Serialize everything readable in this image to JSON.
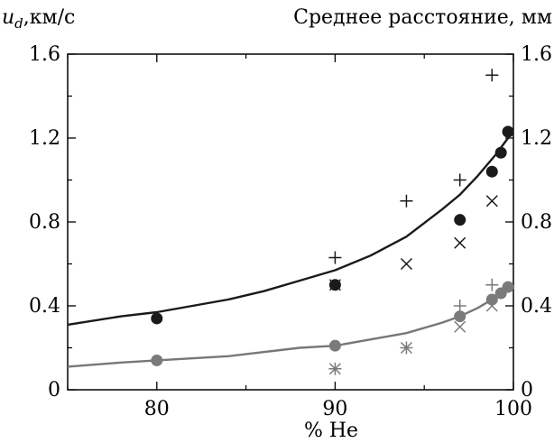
{
  "chart_data": {
    "type": "scatter",
    "title": "",
    "ylabel_left": "u_d,км/с",
    "ylabel_left_parts": {
      "var": "u",
      "sub": "d",
      "unit": ",км/с"
    },
    "ylabel_right": "Среднее расстояние, мм",
    "xlabel": "% He",
    "xlim": [
      75,
      100
    ],
    "ylim": [
      0,
      1.6
    ],
    "ylim_right": [
      0,
      1.6
    ],
    "x_ticks": [
      "80",
      "90",
      "100"
    ],
    "x_tick_values": [
      80,
      90,
      100
    ],
    "y_ticks": [
      "0",
      "0.4",
      "0.8",
      "1.2",
      "1.6"
    ],
    "y_tick_values": [
      0,
      0.4,
      0.8,
      1.2,
      1.6
    ],
    "y_ticks_right": [
      "0",
      "0.4",
      "0.8",
      "1.2",
      "1.6"
    ],
    "grid": false,
    "legend": "none",
    "series": [
      {
        "marker": "circle",
        "color": "#1a1a1a",
        "points": [
          [
            80.0,
            0.34
          ],
          [
            90.0,
            0.5
          ],
          [
            97.0,
            0.81
          ],
          [
            98.8,
            1.04
          ],
          [
            99.3,
            1.13
          ],
          [
            99.7,
            1.23
          ]
        ]
      },
      {
        "marker": "plus",
        "color": "#1a1a1a",
        "points": [
          [
            90.0,
            0.63
          ],
          [
            94.0,
            0.9
          ],
          [
            97.0,
            1.0
          ],
          [
            98.8,
            1.5
          ]
        ]
      },
      {
        "marker": "cross",
        "color": "#1a1a1a",
        "points": [
          [
            90.0,
            0.5
          ],
          [
            94.0,
            0.6
          ],
          [
            97.0,
            0.7
          ],
          [
            98.8,
            0.9
          ]
        ]
      },
      {
        "marker": "circle",
        "color": "#7a7a7a",
        "points": [
          [
            80.0,
            0.14
          ],
          [
            90.0,
            0.21
          ],
          [
            97.0,
            0.35
          ],
          [
            98.8,
            0.43
          ],
          [
            99.3,
            0.46
          ],
          [
            99.7,
            0.49
          ]
        ]
      },
      {
        "marker": "plus",
        "color": "#7a7a7a",
        "points": [
          [
            90.0,
            0.1
          ],
          [
            94.0,
            0.2
          ],
          [
            97.0,
            0.4
          ],
          [
            98.8,
            0.5
          ]
        ]
      },
      {
        "marker": "cross",
        "color": "#7a7a7a",
        "points": [
          [
            90.0,
            0.1
          ],
          [
            94.0,
            0.2
          ],
          [
            97.0,
            0.3
          ],
          [
            98.8,
            0.4
          ]
        ]
      }
    ],
    "lines": [
      {
        "color": "#1a1a1a",
        "points": [
          [
            75,
            0.31
          ],
          [
            78,
            0.35
          ],
          [
            80,
            0.37
          ],
          [
            82,
            0.4
          ],
          [
            84,
            0.43
          ],
          [
            86,
            0.47
          ],
          [
            88,
            0.52
          ],
          [
            90,
            0.57
          ],
          [
            92,
            0.64
          ],
          [
            94,
            0.73
          ],
          [
            96,
            0.86
          ],
          [
            97,
            0.93
          ],
          [
            98,
            1.02
          ],
          [
            99,
            1.12
          ],
          [
            99.7,
            1.2
          ]
        ]
      },
      {
        "color": "#777777",
        "points": [
          [
            75,
            0.11
          ],
          [
            78,
            0.13
          ],
          [
            80,
            0.14
          ],
          [
            84,
            0.16
          ],
          [
            88,
            0.2
          ],
          [
            90,
            0.21
          ],
          [
            92,
            0.24
          ],
          [
            94,
            0.27
          ],
          [
            96,
            0.32
          ],
          [
            97,
            0.35
          ],
          [
            98,
            0.39
          ],
          [
            99,
            0.44
          ],
          [
            99.7,
            0.48
          ]
        ]
      }
    ]
  }
}
